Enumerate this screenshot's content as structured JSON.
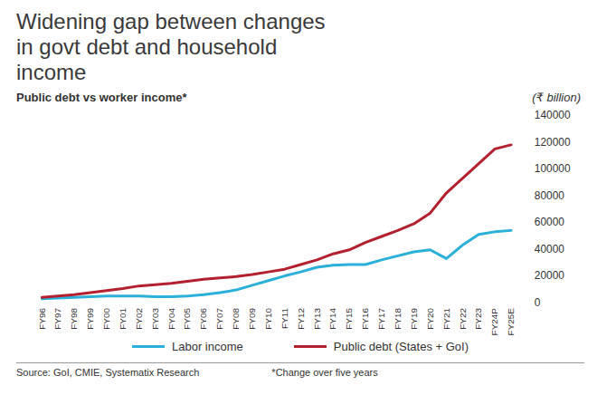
{
  "chart_data": {
    "type": "line",
    "title": "Widening gap between changes in govt debt and household income",
    "subtitle": "Public debt vs worker income*",
    "ylabel": "(₹ billion)",
    "source": "Source: GoI, CMIE, Systematix Research",
    "note": "*Change over five years",
    "categories": [
      "FY96",
      "FY97",
      "FY98",
      "FY99",
      "FY00",
      "FY01",
      "FY02",
      "FY03",
      "FY04",
      "FY05",
      "FY06",
      "FY07",
      "FY08",
      "FY09",
      "FY10",
      "FY11",
      "FY12",
      "FY13",
      "FY14",
      "FY15",
      "FY16",
      "FY17",
      "FY18",
      "FY19",
      "FY20",
      "FY21",
      "FY22",
      "FY23",
      "FY24P",
      "FY25E"
    ],
    "series": [
      {
        "name": "Labor income",
        "color": "#2bb0d9",
        "values": [
          3000,
          3500,
          4000,
          4500,
          5000,
          5000,
          5000,
          4500,
          4500,
          5000,
          6000,
          7500,
          9500,
          13000,
          16500,
          20000,
          23000,
          26500,
          28000,
          28500,
          28500,
          32000,
          35000,
          38000,
          39500,
          33000,
          43000,
          51000,
          53000,
          54000
        ]
      },
      {
        "name": "Public debt (States + GoI)",
        "color": "#b3202f",
        "values": [
          4000,
          5000,
          6000,
          7500,
          9000,
          10500,
          12500,
          13500,
          14500,
          16000,
          17500,
          18500,
          19500,
          21000,
          23000,
          25000,
          28500,
          32000,
          36500,
          39500,
          45000,
          49500,
          54000,
          59000,
          67000,
          82000,
          93000,
          104000,
          115000,
          118000
        ]
      }
    ],
    "ylim": [
      0,
      140000
    ],
    "yticks": [
      0,
      20000,
      40000,
      60000,
      80000,
      100000,
      120000,
      140000
    ],
    "grid": false,
    "legend": "bottom"
  }
}
